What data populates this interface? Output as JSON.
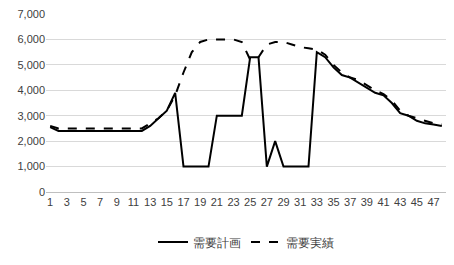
{
  "chart_data": {
    "type": "line",
    "x": [
      1,
      2,
      3,
      4,
      5,
      6,
      7,
      8,
      9,
      10,
      11,
      12,
      13,
      14,
      15,
      16,
      17,
      18,
      19,
      20,
      21,
      22,
      23,
      24,
      25,
      26,
      27,
      28,
      29,
      30,
      31,
      32,
      33,
      34,
      35,
      36,
      37,
      38,
      39,
      40,
      41,
      42,
      43,
      44,
      45,
      46,
      47,
      48
    ],
    "xlim": [
      0.5,
      48.5
    ],
    "xticks": [
      1,
      3,
      5,
      7,
      9,
      11,
      13,
      15,
      17,
      19,
      21,
      23,
      25,
      27,
      29,
      31,
      33,
      35,
      37,
      39,
      41,
      43,
      45,
      47
    ],
    "ylim": [
      0,
      7000
    ],
    "yticks": [
      0,
      {
        "value": 1000,
        "label": "1,000"
      },
      {
        "value": 2000,
        "label": "2,000"
      },
      {
        "value": 3000,
        "label": "3,000"
      },
      {
        "value": 4000,
        "label": "4,000"
      },
      {
        "value": 5000,
        "label": "5,000"
      },
      {
        "value": 6000,
        "label": "6,000"
      },
      {
        "value": 7000,
        "label": "7,000"
      }
    ],
    "grid": true,
    "legend": "bottom",
    "series": [
      {
        "name": "需要計画",
        "color": "#000000",
        "line_style": "solid",
        "values": [
          2550,
          2400,
          2400,
          2400,
          2400,
          2400,
          2400,
          2400,
          2400,
          2400,
          2400,
          2400,
          2600,
          2900,
          3200,
          3900,
          1000,
          1000,
          1000,
          1000,
          3000,
          3000,
          3000,
          3000,
          5300,
          5300,
          1000,
          2000,
          1000,
          1000,
          1000,
          1000,
          5500,
          5300,
          4900,
          4600,
          4500,
          4300,
          4100,
          3900,
          3800,
          3500,
          3100,
          3000,
          2800,
          2700,
          2650,
          2600
        ]
      },
      {
        "name": "需要実績",
        "color": "#000000",
        "line_style": "dash",
        "values": [
          2600,
          2500,
          2500,
          2500,
          2500,
          2500,
          2500,
          2500,
          2500,
          2500,
          2500,
          2500,
          2700,
          2900,
          3200,
          3800,
          4700,
          5500,
          5900,
          6000,
          6000,
          6000,
          6000,
          5900,
          5200,
          5300,
          5800,
          5900,
          5900,
          5800,
          5700,
          5650,
          5600,
          5400,
          5000,
          4700,
          4500,
          4400,
          4200,
          4000,
          3850,
          3600,
          3200,
          3000,
          2900,
          2800,
          2700,
          2650
        ]
      }
    ]
  }
}
